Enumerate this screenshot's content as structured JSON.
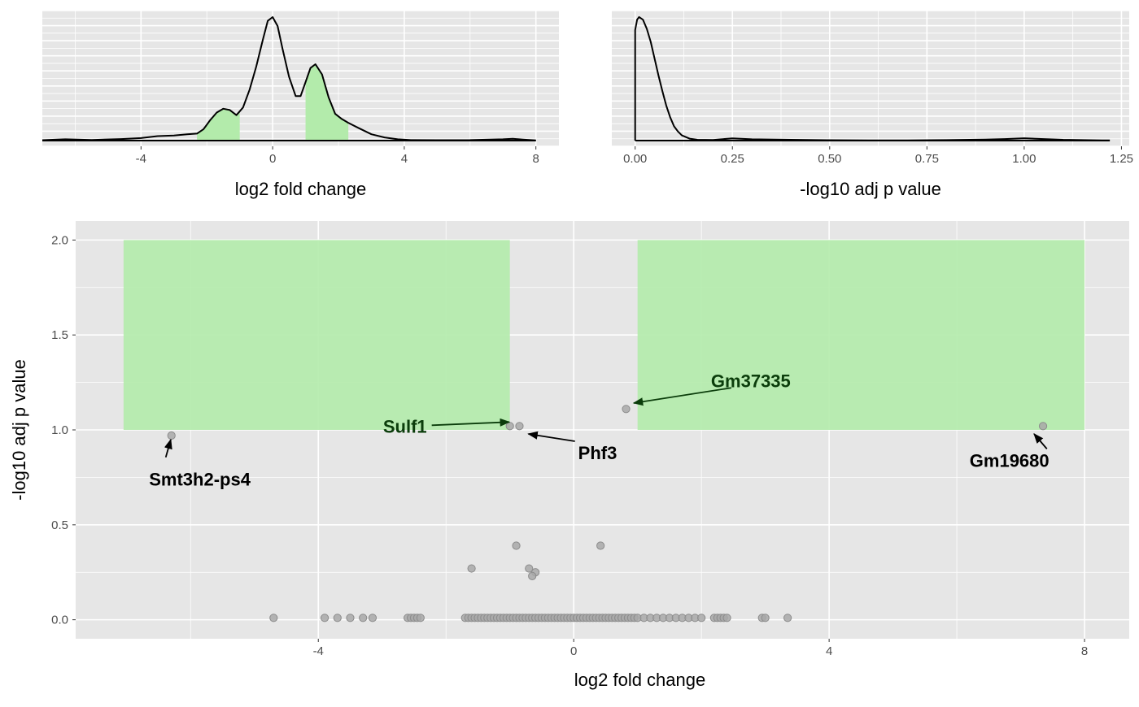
{
  "colors": {
    "panel_bg": "#e6e6e6",
    "grid_major": "#ffffff",
    "highlight_fill": "#b3ebab",
    "point_fill": "#a8a8a8",
    "point_stroke": "#8c8c8c",
    "density_line": "#000000",
    "label_default": "#000000",
    "label_sig": "#0b3d0b"
  },
  "chart_data": [
    {
      "id": "density_fc",
      "type": "area",
      "xlabel": "log2 fold change",
      "xlim": [
        -7,
        8.7
      ],
      "xticks": [
        -4,
        0,
        4,
        8
      ],
      "shade_regions": [
        [
          -2.3,
          -1
        ],
        [
          1,
          2.3
        ]
      ],
      "density": {
        "x": [
          -7.0,
          -6.3,
          -5.5,
          -4.6,
          -4.0,
          -3.5,
          -3.0,
          -2.6,
          -2.3,
          -2.1,
          -1.9,
          -1.7,
          -1.5,
          -1.3,
          -1.1,
          -0.9,
          -0.7,
          -0.5,
          -0.3,
          -0.15,
          0.0,
          0.15,
          0.3,
          0.5,
          0.7,
          0.85,
          1.0,
          1.15,
          1.3,
          1.5,
          1.7,
          1.9,
          2.1,
          2.3,
          2.6,
          3.0,
          3.4,
          3.8,
          4.2,
          5.0,
          6.0,
          7.0,
          7.3,
          7.6,
          8.0
        ],
        "y": [
          0.003,
          0.01,
          0.005,
          0.012,
          0.02,
          0.035,
          0.04,
          0.05,
          0.055,
          0.09,
          0.16,
          0.22,
          0.25,
          0.24,
          0.2,
          0.26,
          0.4,
          0.58,
          0.79,
          0.94,
          0.97,
          0.9,
          0.72,
          0.5,
          0.35,
          0.35,
          0.46,
          0.57,
          0.6,
          0.52,
          0.34,
          0.21,
          0.17,
          0.14,
          0.1,
          0.05,
          0.025,
          0.01,
          0.004,
          0.003,
          0.004,
          0.01,
          0.014,
          0.008,
          0.002
        ],
        "ymax": 0.97
      }
    },
    {
      "id": "density_p",
      "type": "area",
      "xlabel": "-log10 adj p value",
      "xlim": [
        -0.06,
        1.27
      ],
      "xticks": [
        0.0,
        0.25,
        0.5,
        0.75,
        1.0,
        1.25
      ],
      "xtick_labels": [
        "0.00",
        "0.25",
        "0.50",
        "0.75",
        "1.00",
        "1.25"
      ],
      "density": {
        "x": [
          0.0,
          0.0,
          0.005,
          0.01,
          0.02,
          0.03,
          0.04,
          0.05,
          0.06,
          0.07,
          0.08,
          0.09,
          0.1,
          0.11,
          0.12,
          0.14,
          0.16,
          0.2,
          0.25,
          0.3,
          0.4,
          0.5,
          0.6,
          0.7,
          0.8,
          0.9,
          0.95,
          1.0,
          1.05,
          1.1,
          1.2,
          1.22
        ],
        "y": [
          0.0,
          8.5,
          9.3,
          9.5,
          9.3,
          8.6,
          7.6,
          6.3,
          5.0,
          3.8,
          2.7,
          1.8,
          1.1,
          0.7,
          0.4,
          0.15,
          0.06,
          0.05,
          0.17,
          0.1,
          0.06,
          0.03,
          0.02,
          0.02,
          0.04,
          0.08,
          0.12,
          0.18,
          0.12,
          0.06,
          0.02,
          0.01
        ],
        "ymax": 9.5
      }
    },
    {
      "id": "volcano",
      "type": "scatter",
      "xlabel": "log2 fold change",
      "ylabel": "-log10 adj p value",
      "xlim": [
        -7.8,
        8.7
      ],
      "ylim": [
        -0.1,
        2.1
      ],
      "xticks": [
        -4,
        0,
        4,
        8
      ],
      "yticks": [
        0.0,
        0.5,
        1.0,
        1.5,
        2.0
      ],
      "ytick_labels": [
        "0.0",
        "0.5",
        "1.0",
        "1.5",
        "2.0"
      ],
      "highlight_regions": [
        {
          "x": [
            -7.05,
            -1.0
          ],
          "y": [
            1.0,
            2.0
          ]
        },
        {
          "x": [
            1.0,
            8.0
          ],
          "y": [
            1.0,
            2.0
          ]
        }
      ],
      "points": {
        "x": [
          -4.7,
          -3.9,
          -3.7,
          -3.5,
          -3.3,
          -3.15,
          -2.6,
          -2.55,
          -2.5,
          -2.45,
          -2.4,
          -1.7,
          -1.65,
          -1.6,
          -1.55,
          -1.5,
          -1.45,
          -1.4,
          -1.35,
          -1.3,
          -1.25,
          -1.2,
          -1.15,
          -1.1,
          -1.05,
          -1.0,
          -0.95,
          -0.9,
          -0.85,
          -0.8,
          -0.75,
          -0.7,
          -0.65,
          -0.6,
          -0.55,
          -0.5,
          -0.45,
          -0.4,
          -0.35,
          -0.3,
          -0.25,
          -0.2,
          -0.15,
          -0.1,
          -0.05,
          0.0,
          0.05,
          0.1,
          0.15,
          0.2,
          0.25,
          0.3,
          0.35,
          0.4,
          0.45,
          0.5,
          0.55,
          0.6,
          0.65,
          0.7,
          0.75,
          0.8,
          0.85,
          0.9,
          0.95,
          1.0,
          1.1,
          1.2,
          1.3,
          1.4,
          1.5,
          1.6,
          1.7,
          1.8,
          1.9,
          2.0,
          2.2,
          2.25,
          2.3,
          2.35,
          2.4,
          2.95,
          3.0,
          3.35,
          -1.6,
          -0.9,
          -0.7,
          -0.6,
          -0.65,
          0.42,
          -6.3,
          -1.0,
          -0.85,
          0.82,
          7.35
        ],
        "y": [
          0.01,
          0.01,
          0.01,
          0.01,
          0.01,
          0.01,
          0.01,
          0.01,
          0.01,
          0.01,
          0.01,
          0.01,
          0.01,
          0.01,
          0.01,
          0.01,
          0.01,
          0.01,
          0.01,
          0.01,
          0.01,
          0.01,
          0.01,
          0.01,
          0.01,
          0.01,
          0.01,
          0.01,
          0.01,
          0.01,
          0.01,
          0.01,
          0.01,
          0.01,
          0.01,
          0.01,
          0.01,
          0.01,
          0.01,
          0.01,
          0.01,
          0.01,
          0.01,
          0.01,
          0.01,
          0.01,
          0.01,
          0.01,
          0.01,
          0.01,
          0.01,
          0.01,
          0.01,
          0.01,
          0.01,
          0.01,
          0.01,
          0.01,
          0.01,
          0.01,
          0.01,
          0.01,
          0.01,
          0.01,
          0.01,
          0.01,
          0.01,
          0.01,
          0.01,
          0.01,
          0.01,
          0.01,
          0.01,
          0.01,
          0.01,
          0.01,
          0.01,
          0.01,
          0.01,
          0.01,
          0.01,
          0.01,
          0.01,
          0.01,
          0.27,
          0.39,
          0.27,
          0.25,
          0.23,
          0.39,
          0.97,
          1.02,
          1.02,
          1.11,
          1.02
        ]
      },
      "labels": [
        {
          "text": "Smt3h2-ps4",
          "x": -6.3,
          "y": 0.97,
          "label_x": -6.65,
          "label_y": 0.74,
          "sig": false
        },
        {
          "text": "Sulf1",
          "x": -1.0,
          "y": 1.02,
          "label_x": -2.3,
          "label_y": 1.02,
          "sig": true
        },
        {
          "text": "Phf3",
          "x": -0.72,
          "y": 1.0,
          "label_x": 0.07,
          "label_y": 0.88,
          "sig": false
        },
        {
          "text": "Gm37335",
          "x": 0.93,
          "y": 1.12,
          "label_x": 2.15,
          "label_y": 1.26,
          "sig": true
        },
        {
          "text": "Gm19680",
          "x": 7.2,
          "y": 1.0,
          "label_x": 6.2,
          "label_y": 0.84,
          "sig": false
        }
      ]
    }
  ]
}
